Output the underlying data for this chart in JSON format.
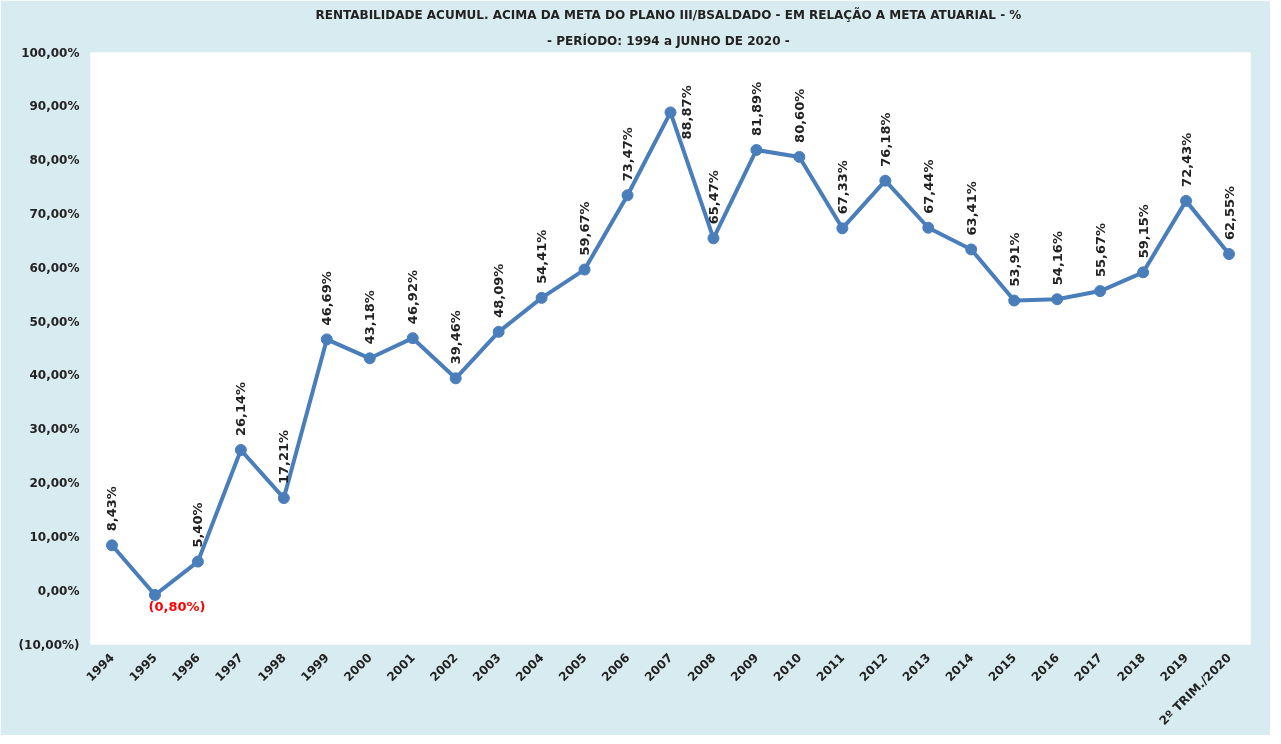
{
  "chart_data": {
    "type": "line",
    "title": "RENTABILIDADE  ACUMUL. ACIMA DA META DO PLANO III/BSALDADO - EM RELAÇÃO A META ATUARIAL - %",
    "subtitle": "- PERÍODO:  1994 a JUNHO DE 2020 -",
    "categories": [
      "1994",
      "1995",
      "1996",
      "1997",
      "1998",
      "1999",
      "2000",
      "2001",
      "2002",
      "2003",
      "2004",
      "2005",
      "2006",
      "2007",
      "2008",
      "2009",
      "2010",
      "2011",
      "2012",
      "2013",
      "2014",
      "2015",
      "2016",
      "2017",
      "2018",
      "2019",
      "2º TRIM./2020"
    ],
    "series": [
      {
        "color": "#4a7ebb",
        "values": [
          8.43,
          -0.8,
          5.4,
          26.14,
          17.21,
          46.69,
          43.18,
          46.92,
          39.46,
          48.09,
          54.41,
          59.67,
          73.47,
          88.87,
          65.47,
          81.89,
          80.6,
          67.33,
          76.18,
          67.44,
          63.41,
          53.91,
          54.16,
          55.67,
          59.15,
          72.43,
          62.55
        ],
        "value_labels": [
          "8,43%",
          "(0,80%)",
          "5,40%",
          "26,14%",
          "17,21%",
          "46,69%",
          "43,18%",
          "46,92%",
          "39,46%",
          "48,09%",
          "54,41%",
          "59,67%",
          "73,47%",
          "88,87%",
          "65,47%",
          "81,89%",
          "80,60%",
          "67,33%",
          "76,18%",
          "67,44%",
          "63,41%",
          "53,91%",
          "54,16%",
          "55,67%",
          "59,15%",
          "72,43%",
          "62,55%"
        ]
      }
    ],
    "ylim": [
      -10,
      100
    ],
    "yticks": [
      {
        "value": -10,
        "label": "(10,00%)"
      },
      {
        "value": 0,
        "label": "0,00%"
      },
      {
        "value": 10,
        "label": "10,00%"
      },
      {
        "value": 20,
        "label": "20,00%"
      },
      {
        "value": 30,
        "label": "30,00%"
      },
      {
        "value": 40,
        "label": "40,00%"
      },
      {
        "value": 50,
        "label": "50,00%"
      },
      {
        "value": 60,
        "label": "60,00%"
      },
      {
        "value": 70,
        "label": "70,00%"
      },
      {
        "value": 80,
        "label": "80,00%"
      },
      {
        "value": 90,
        "label": "90,00%"
      },
      {
        "value": 100,
        "label": "100,00%"
      }
    ],
    "marker": "circle",
    "line_style": "solid",
    "grid": false
  }
}
